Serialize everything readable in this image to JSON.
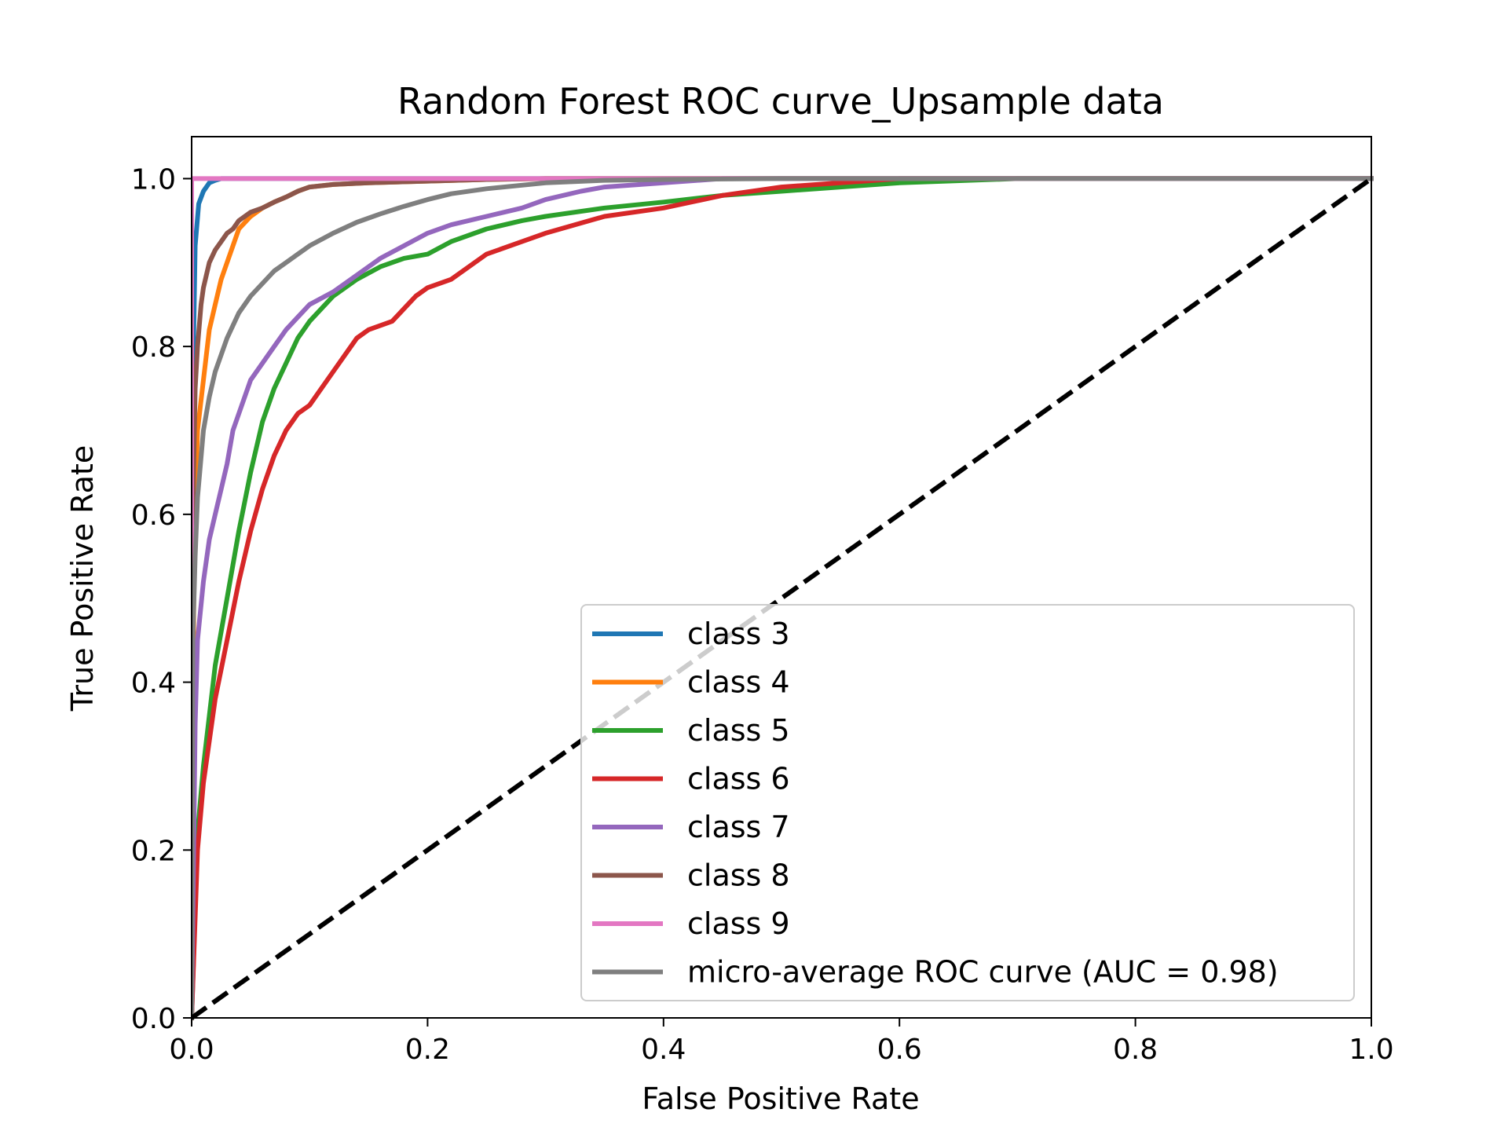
{
  "chart_data": {
    "type": "line",
    "title": "Random Forest ROC curve_Upsample data",
    "xlabel": "False Positive Rate",
    "ylabel": "True Positive Rate",
    "xlim": [
      0.0,
      1.0
    ],
    "ylim": [
      0.0,
      1.05
    ],
    "xticks": [
      "0.0",
      "0.2",
      "0.4",
      "0.6",
      "0.8",
      "1.0"
    ],
    "yticks": [
      "0.0",
      "0.2",
      "0.4",
      "0.6",
      "0.8",
      "1.0"
    ],
    "grid": false,
    "legend_position": "lower-right",
    "series": [
      {
        "name": "class 3",
        "color": "#1f77b4",
        "x": [
          0,
          0.001,
          0.003,
          0.006,
          0.01,
          0.015,
          0.02,
          0.025,
          1.0
        ],
        "y": [
          0,
          0.75,
          0.92,
          0.97,
          0.985,
          0.995,
          0.998,
          1.0,
          1.0
        ]
      },
      {
        "name": "class 4",
        "color": "#ff7f0e",
        "x": [
          0,
          0.002,
          0.005,
          0.01,
          0.015,
          0.02,
          0.025,
          0.03,
          0.035,
          0.04,
          0.05,
          0.06,
          0.07,
          0.08,
          0.09,
          0.1,
          0.12,
          0.15,
          0.2,
          0.25,
          0.3,
          1.0
        ],
        "y": [
          0,
          0.55,
          0.7,
          0.76,
          0.82,
          0.85,
          0.88,
          0.9,
          0.92,
          0.94,
          0.955,
          0.965,
          0.972,
          0.978,
          0.985,
          0.99,
          0.993,
          0.995,
          0.997,
          0.999,
          1.0,
          1.0
        ]
      },
      {
        "name": "class 5",
        "color": "#2ca02c",
        "x": [
          0,
          0.005,
          0.01,
          0.02,
          0.03,
          0.04,
          0.05,
          0.06,
          0.07,
          0.08,
          0.09,
          0.1,
          0.12,
          0.14,
          0.16,
          0.18,
          0.2,
          0.22,
          0.25,
          0.28,
          0.3,
          0.35,
          0.4,
          0.45,
          0.5,
          0.55,
          0.6,
          0.7,
          1.0
        ],
        "y": [
          0,
          0.22,
          0.3,
          0.42,
          0.5,
          0.58,
          0.65,
          0.71,
          0.75,
          0.78,
          0.81,
          0.83,
          0.86,
          0.88,
          0.895,
          0.905,
          0.91,
          0.925,
          0.94,
          0.95,
          0.955,
          0.965,
          0.972,
          0.98,
          0.985,
          0.99,
          0.995,
          1.0,
          1.0
        ]
      },
      {
        "name": "class 6",
        "color": "#d62728",
        "x": [
          0,
          0.005,
          0.01,
          0.02,
          0.03,
          0.04,
          0.05,
          0.06,
          0.07,
          0.08,
          0.09,
          0.1,
          0.12,
          0.14,
          0.15,
          0.17,
          0.19,
          0.2,
          0.22,
          0.25,
          0.28,
          0.3,
          0.35,
          0.4,
          0.45,
          0.5,
          0.55,
          0.6,
          1.0
        ],
        "y": [
          0,
          0.2,
          0.28,
          0.38,
          0.45,
          0.52,
          0.58,
          0.63,
          0.67,
          0.7,
          0.72,
          0.73,
          0.77,
          0.81,
          0.82,
          0.83,
          0.86,
          0.87,
          0.88,
          0.91,
          0.925,
          0.935,
          0.955,
          0.965,
          0.98,
          0.99,
          0.995,
          1.0,
          1.0
        ]
      },
      {
        "name": "class 7",
        "color": "#9467bd",
        "x": [
          0,
          0.003,
          0.005,
          0.01,
          0.015,
          0.02,
          0.025,
          0.03,
          0.035,
          0.04,
          0.05,
          0.06,
          0.07,
          0.08,
          0.09,
          0.1,
          0.12,
          0.14,
          0.16,
          0.18,
          0.2,
          0.22,
          0.25,
          0.28,
          0.3,
          0.33,
          0.35,
          0.4,
          0.45,
          1.0
        ],
        "y": [
          0,
          0.35,
          0.45,
          0.52,
          0.57,
          0.6,
          0.63,
          0.66,
          0.7,
          0.72,
          0.76,
          0.78,
          0.8,
          0.82,
          0.835,
          0.85,
          0.865,
          0.885,
          0.905,
          0.92,
          0.935,
          0.945,
          0.955,
          0.965,
          0.975,
          0.985,
          0.99,
          0.995,
          1.0,
          1.0
        ]
      },
      {
        "name": "class 8",
        "color": "#8c564b",
        "x": [
          0,
          0.001,
          0.003,
          0.005,
          0.008,
          0.01,
          0.015,
          0.02,
          0.025,
          0.03,
          0.035,
          0.04,
          0.05,
          0.06,
          0.07,
          0.08,
          0.09,
          0.1,
          0.12,
          0.15,
          0.2,
          0.25,
          0.3,
          1.0
        ],
        "y": [
          0,
          0.6,
          0.75,
          0.8,
          0.85,
          0.87,
          0.9,
          0.915,
          0.925,
          0.935,
          0.94,
          0.95,
          0.96,
          0.965,
          0.972,
          0.978,
          0.985,
          0.99,
          0.993,
          0.995,
          0.997,
          0.999,
          1.0,
          1.0
        ]
      },
      {
        "name": "class 9",
        "color": "#e377c2",
        "x": [
          0,
          0.0,
          0.005,
          0.02,
          1.0
        ],
        "y": [
          0,
          1.0,
          1.0,
          1.0,
          1.0
        ]
      },
      {
        "name": "micro-average ROC curve (AUC = 0.98)",
        "color": "#7f7f7f",
        "x": [
          0,
          0.001,
          0.003,
          0.005,
          0.01,
          0.015,
          0.02,
          0.03,
          0.04,
          0.05,
          0.06,
          0.07,
          0.08,
          0.09,
          0.1,
          0.12,
          0.14,
          0.16,
          0.18,
          0.2,
          0.22,
          0.25,
          0.3,
          0.35,
          0.4,
          0.5,
          1.0
        ],
        "y": [
          0,
          0.45,
          0.55,
          0.62,
          0.7,
          0.74,
          0.77,
          0.81,
          0.84,
          0.86,
          0.875,
          0.89,
          0.9,
          0.91,
          0.92,
          0.935,
          0.948,
          0.958,
          0.967,
          0.975,
          0.982,
          0.988,
          0.995,
          0.998,
          0.999,
          1.0,
          1.0
        ]
      }
    ],
    "reference_line": {
      "x": [
        0,
        1
      ],
      "y": [
        0,
        1
      ],
      "color": "#000000",
      "style": "dashed"
    }
  }
}
